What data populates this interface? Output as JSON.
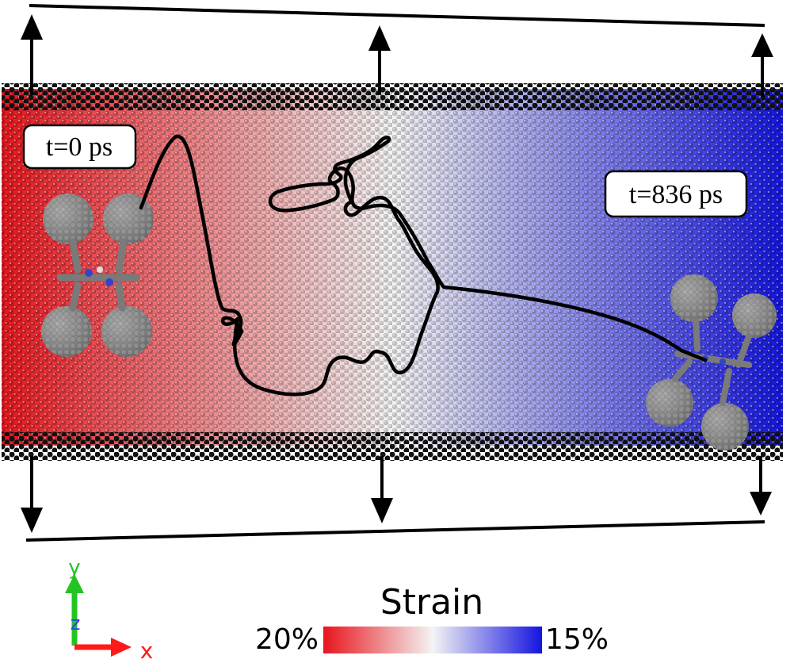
{
  "labels": {
    "t_start": "t=0 ps",
    "t_end": "t=836 ps",
    "colorbar_title": "Strain",
    "colorbar_left": "20%",
    "colorbar_right": "15%"
  },
  "axes": {
    "x": "x",
    "y": "y",
    "z": "z"
  },
  "colors": {
    "strain_high": "#e8141c",
    "strain_mid": "#f4f4f4",
    "strain_low": "#1414e0",
    "edge_atoms": "#111111",
    "molecule": "#8c8c8c",
    "trajectory": "#000000",
    "axis_x": "#ff1a1a",
    "axis_y": "#22c422",
    "axis_z": "#3a3aff"
  }
}
